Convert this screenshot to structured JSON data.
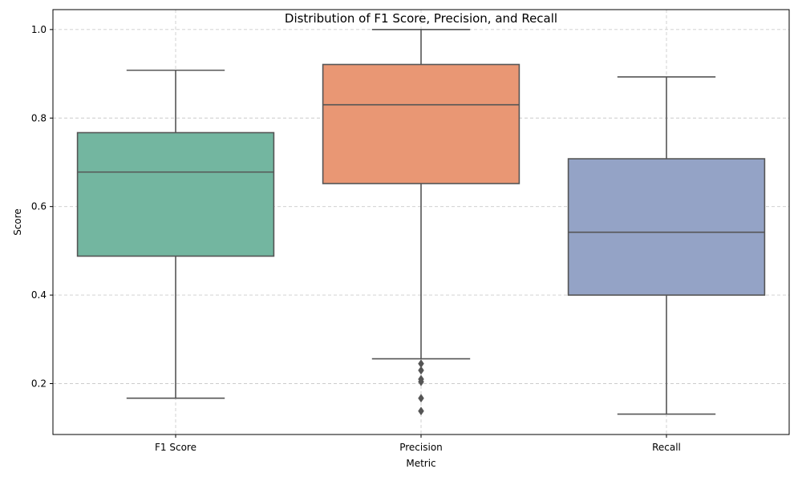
{
  "chart_data": {
    "type": "box",
    "title": "Distribution of F1 Score, Precision, and Recall",
    "xlabel": "Metric",
    "ylabel": "Score",
    "ylim": [
      0.085,
      1.045
    ],
    "yticks": [
      0.2,
      0.4,
      0.6,
      0.8,
      1.0
    ],
    "ytick_labels": [
      "0.2",
      "0.4",
      "0.6",
      "0.8",
      "1.0"
    ],
    "grid": true,
    "categories": [
      "F1 Score",
      "Precision",
      "Recall"
    ],
    "boxes": [
      {
        "category": "F1 Score",
        "whisker_low": 0.167,
        "q1": 0.488,
        "median": 0.678,
        "q3": 0.767,
        "whisker_high": 0.908,
        "outliers": [],
        "color": "#73b6a0"
      },
      {
        "category": "Precision",
        "whisker_low": 0.256,
        "q1": 0.652,
        "median": 0.83,
        "q3": 0.921,
        "whisker_high": 1.0,
        "outliers": [
          0.245,
          0.23,
          0.21,
          0.204,
          0.167,
          0.138
        ],
        "color": "#e99774"
      },
      {
        "category": "Recall",
        "whisker_low": 0.131,
        "q1": 0.4,
        "median": 0.542,
        "q3": 0.708,
        "whisker_high": 0.893,
        "outliers": [],
        "color": "#94a3c6"
      }
    ]
  }
}
